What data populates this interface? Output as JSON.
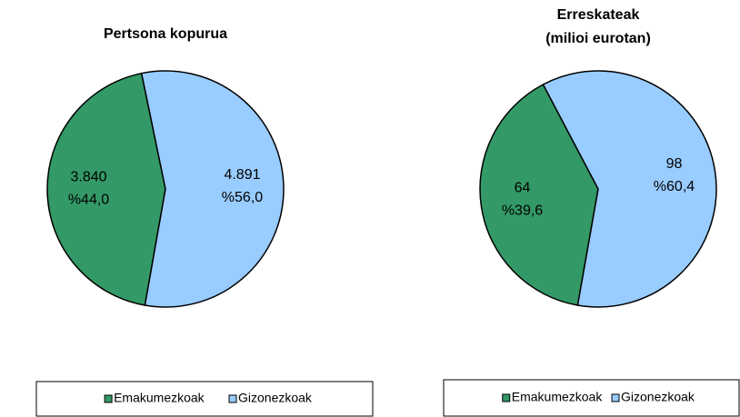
{
  "chart_data": [
    {
      "type": "pie",
      "title": "Pertsona kopurua",
      "categories": [
        "Emakumezkoak",
        "Gizonezkoak"
      ],
      "values": [
        3840,
        4891
      ],
      "value_labels": [
        "3.840",
        "4.891"
      ],
      "percent_values": [
        44.0,
        56.0
      ],
      "percent_labels": [
        "%44,0",
        "%56,0"
      ],
      "colors": [
        "#339966",
        "#99ccff"
      ],
      "legend": "bottom"
    },
    {
      "type": "pie",
      "title": "Erreskateak",
      "subtitle": "(milioi eurotan)",
      "categories": [
        "Emakumezkoak",
        "Gizonezkoak"
      ],
      "values": [
        64,
        98
      ],
      "value_labels": [
        "64",
        "98"
      ],
      "percent_values": [
        39.6,
        60.4
      ],
      "percent_labels": [
        "%39,6",
        "%60,4"
      ],
      "colors": [
        "#339966",
        "#99ccff"
      ],
      "legend": "bottom"
    }
  ]
}
